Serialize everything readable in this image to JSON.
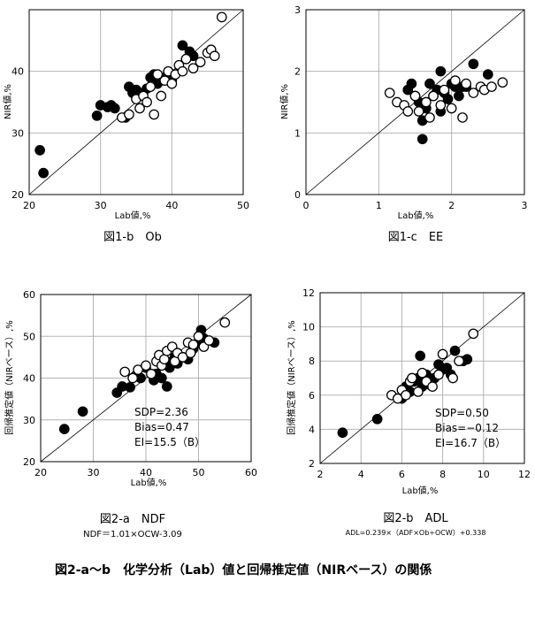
{
  "figure_caption": "図2-a～b　化学分析（Lab）値と回帰推定値（NIRベース）の関係",
  "chart_data": [
    {
      "id": "ob",
      "type": "scatter",
      "title": "図1-b　Ob",
      "xlabel": "Lab値,%",
      "ylabel": "NIR値,%",
      "xlim": [
        20,
        50
      ],
      "ylim": [
        20,
        50
      ],
      "xticks": [
        20,
        30,
        40,
        50
      ],
      "yticks": [
        20,
        30,
        40
      ],
      "xticklabels": [
        "20",
        "30",
        "40",
        "50"
      ],
      "yticklabels": [
        "20",
        "30",
        "40"
      ],
      "grid": true,
      "stats": [],
      "equation": "",
      "series": [
        {
          "name": "filled",
          "marker": "filled",
          "x": [
            21.5,
            22,
            29.5,
            30,
            31,
            31.5,
            32,
            33.5,
            34,
            34.5,
            35,
            35.5,
            36.5,
            37,
            37.5,
            38,
            39,
            40,
            41.5,
            42,
            42.5,
            43
          ],
          "y": [
            27.2,
            23.5,
            32.8,
            34.5,
            34.2,
            34.5,
            34,
            32.5,
            37.5,
            36.5,
            37,
            36.5,
            37.2,
            39,
            39.5,
            38,
            39,
            38.5,
            44.2,
            42,
            43.2,
            42.5
          ]
        },
        {
          "name": "open",
          "marker": "open",
          "x": [
            33,
            34,
            35,
            35.5,
            36,
            36.5,
            37,
            37.5,
            38,
            38.5,
            39,
            39.5,
            40,
            40.5,
            41,
            41.5,
            42,
            43,
            44,
            45,
            45.5,
            46,
            47
          ],
          "y": [
            32.5,
            33,
            35.5,
            34,
            36,
            35,
            37.5,
            33,
            39.5,
            36,
            38.5,
            40,
            38,
            39.5,
            41,
            40,
            42,
            40.5,
            41.5,
            43,
            43.5,
            42.5,
            48.8
          ]
        }
      ]
    },
    {
      "id": "ee",
      "type": "scatter",
      "title": "図1-c　EE",
      "xlabel": "Lab値,%",
      "ylabel": "NIR値,%",
      "xlim": [
        0,
        3
      ],
      "ylim": [
        0,
        3
      ],
      "xticks": [
        0,
        1,
        2,
        3
      ],
      "yticks": [
        0,
        1,
        2,
        3
      ],
      "xticklabels": [
        "0",
        "1",
        "2",
        "3"
      ],
      "yticklabels": [
        "0",
        "1",
        "2",
        "3"
      ],
      "grid": true,
      "stats": [],
      "equation": "",
      "series": [
        {
          "name": "filled",
          "marker": "filled",
          "x": [
            1.4,
            1.45,
            1.5,
            1.55,
            1.6,
            1.6,
            1.65,
            1.7,
            1.75,
            1.8,
            1.85,
            1.85,
            1.9,
            1.95,
            2.0,
            2.05,
            2.1,
            2.15,
            2.2,
            2.3,
            2.5
          ],
          "y": [
            1.7,
            1.8,
            1.6,
            1.5,
            0.9,
            1.2,
            1.4,
            1.8,
            1.6,
            1.7,
            2.0,
            1.35,
            1.65,
            1.55,
            1.8,
            1.75,
            1.6,
            1.75,
            1.75,
            2.12,
            1.95
          ],
          "y_note": "estimated"
        },
        {
          "name": "open",
          "marker": "open",
          "x": [
            1.15,
            1.25,
            1.35,
            1.4,
            1.5,
            1.55,
            1.65,
            1.7,
            1.75,
            1.85,
            1.9,
            2.0,
            2.05,
            2.15,
            2.2,
            2.3,
            2.4,
            2.45,
            2.55,
            2.7
          ],
          "y": [
            1.65,
            1.5,
            1.45,
            1.35,
            1.6,
            1.35,
            1.5,
            1.25,
            1.6,
            1.45,
            1.7,
            1.4,
            1.85,
            1.25,
            1.8,
            1.65,
            1.75,
            1.7,
            1.75,
            1.82
          ]
        }
      ]
    },
    {
      "id": "ndf",
      "type": "scatter",
      "title": "図2-a　NDF",
      "xlabel": "Lab値,%",
      "ylabel": "回帰推定値（NIRベース）,%",
      "xlim": [
        20,
        60
      ],
      "ylim": [
        20,
        60
      ],
      "xticks": [
        20,
        30,
        40,
        50,
        60
      ],
      "yticks": [
        20,
        30,
        40,
        50,
        60
      ],
      "xticklabels": [
        "20",
        "30",
        "40",
        "50",
        "60"
      ],
      "yticklabels": [
        "20",
        "30",
        "40",
        "50",
        "60"
      ],
      "grid": true,
      "stats": [
        "SDP=2.36",
        "Bias=0.47",
        "EI=15.5（B）"
      ],
      "equation": "NDF＝1.01×OCW-3.09",
      "series": [
        {
          "name": "filled",
          "marker": "filled",
          "x": [
            24.5,
            28,
            34.5,
            35.5,
            37,
            38,
            39,
            40,
            41.5,
            42,
            43,
            44,
            44.5,
            45,
            45.5,
            46,
            47,
            48,
            49,
            50,
            50.5,
            51,
            53
          ],
          "y": [
            27.8,
            32,
            36.5,
            38,
            37.8,
            40.5,
            40,
            42.5,
            39.5,
            41,
            40,
            38,
            42.5,
            44,
            45,
            43.5,
            45,
            44.5,
            47,
            48.5,
            51.5,
            49.5,
            48.5
          ]
        },
        {
          "name": "open",
          "marker": "open",
          "x": [
            36,
            37.5,
            38.5,
            40,
            41,
            42,
            42.5,
            43,
            43.5,
            44,
            45,
            45.5,
            46,
            47,
            48,
            48.5,
            49,
            50,
            51,
            52,
            55
          ],
          "y": [
            41.5,
            40,
            42,
            43,
            41,
            44,
            45.5,
            43,
            44.5,
            46.5,
            47.5,
            44,
            46,
            45,
            48.5,
            46,
            48,
            50,
            47.5,
            49,
            53.3
          ]
        }
      ]
    },
    {
      "id": "adl",
      "type": "scatter",
      "title": "図2-b　ADL",
      "xlabel": "Lab値,%",
      "ylabel": "回帰推定値（NIRベース）,%",
      "xlim": [
        2,
        12
      ],
      "ylim": [
        2,
        12
      ],
      "xticks": [
        2,
        4,
        6,
        8,
        10,
        12
      ],
      "yticks": [
        2,
        4,
        6,
        8,
        10,
        12
      ],
      "xticklabels": [
        "2",
        "4",
        "6",
        "8",
        "10",
        "12"
      ],
      "yticklabels": [
        "2",
        "4",
        "6",
        "8",
        "10",
        "12"
      ],
      "grid": true,
      "stats": [
        "SDP=0.50",
        "Bias=−0.12",
        "EI=16.7（B）"
      ],
      "equation": "ADL=0.239×（ADF×Ob÷OCW）+0.338",
      "series": [
        {
          "name": "filled",
          "marker": "filled",
          "x": [
            3.1,
            4.8,
            6.0,
            6.2,
            6.4,
            6.6,
            6.8,
            6.9,
            7.0,
            7.2,
            7.4,
            7.6,
            7.8,
            8.0,
            8.2,
            8.4,
            8.6,
            9.0,
            9.2
          ],
          "y": [
            3.8,
            4.6,
            5.8,
            6.5,
            6.2,
            6.8,
            7.0,
            8.3,
            6.5,
            7.2,
            6.6,
            7.0,
            7.8,
            7.5,
            7.6,
            7.2,
            8.6,
            8.0,
            8.1
          ]
        },
        {
          "name": "open",
          "marker": "open",
          "x": [
            5.5,
            5.8,
            6.0,
            6.2,
            6.4,
            6.5,
            6.8,
            7.0,
            7.2,
            7.5,
            7.8,
            8.0,
            8.5,
            8.8,
            9.5
          ],
          "y": [
            6.0,
            5.8,
            6.3,
            6.0,
            6.8,
            7.0,
            6.2,
            7.3,
            6.8,
            6.5,
            7.2,
            8.4,
            7.0,
            8.0,
            9.6
          ]
        }
      ]
    }
  ]
}
